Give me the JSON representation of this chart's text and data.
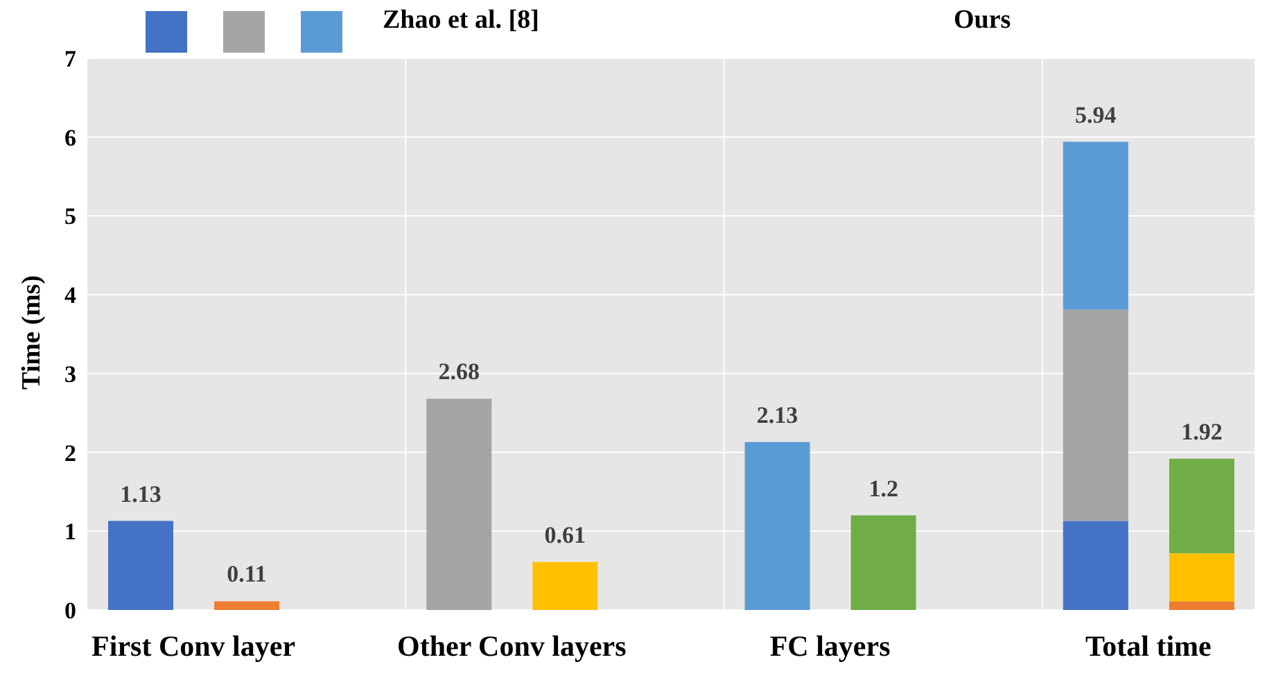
{
  "chart_data": {
    "type": "bar",
    "stacked": true,
    "ylabel": "Time (ms)",
    "categories": [
      null,
      null,
      null,
      null,
      null,
      null,
      null,
      null,
      null,
      null,
      null
    ],
    "series": [
      {
        "color": "#4472c4",
        "colors": [
          "#4472c4",
          "#ed7d31",
          null,
          null,
          null,
          null,
          null,
          null,
          null,
          "#4472c4",
          "#ed7d31"
        ],
        "values": [
          1.13,
          0.11,
          null,
          null,
          null,
          null,
          null,
          null,
          null,
          1.13,
          0.11
        ]
      },
      {
        "color": "#a5a5a5",
        "colors": [
          null,
          null,
          null,
          "#a5a5a5",
          "#ffc000",
          null,
          null,
          null,
          null,
          "#a5a5a5",
          "#ffc000"
        ],
        "values": [
          null,
          null,
          null,
          2.68,
          0.61,
          null,
          null,
          null,
          null,
          2.68,
          0.61
        ]
      },
      {
        "color": "#5b9bd5",
        "colors": [
          null,
          null,
          null,
          null,
          null,
          null,
          "#5b9bd5",
          "#70ad47",
          null,
          "#5b9bd5",
          "#70ad47"
        ],
        "values": [
          null,
          null,
          null,
          null,
          null,
          null,
          2.13,
          1.2,
          null,
          2.13,
          1.2
        ]
      }
    ],
    "totals": [
      "1.13",
      "0.11",
      null,
      "2.68",
      "0.61",
      null,
      "2.13",
      "1.2",
      null,
      "5.94",
      "1.92"
    ],
    "ylim": [
      0,
      7
    ],
    "yticks": [
      0,
      1,
      2,
      3,
      4,
      5,
      6,
      7
    ],
    "grid": true,
    "annotations": [
      "Zhao et al. [8]",
      "Ours",
      "First Conv layer",
      "Other Conv layers",
      "FC layers",
      "Total time"
    ]
  }
}
